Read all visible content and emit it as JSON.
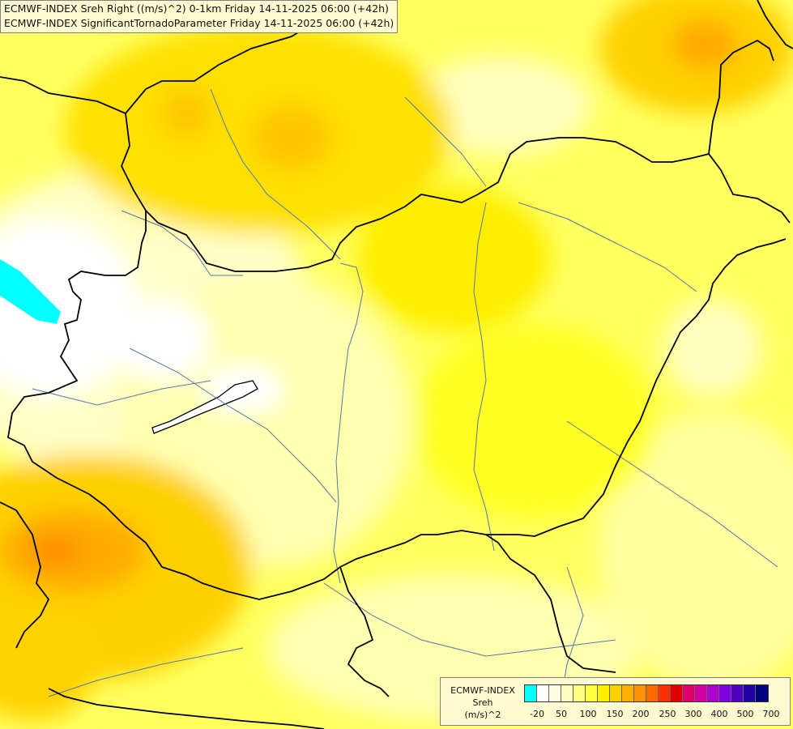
{
  "title": {
    "line1": "ECMWF-INDEX Sreh Right ((m/s)^2) 0-1km Friday 14-11-2025 06:00 (+42h)",
    "line2": "ECMWF-INDEX SignificantTornadoParameter Friday 14-11-2025 06:00 (+42h)"
  },
  "legend": {
    "line1": "ECMWF-INDEX",
    "line2": "Sreh",
    "line3": "(m/s)^2",
    "colors": [
      "#00ffff",
      "#ffffff",
      "#fffce0",
      "#ffffc0",
      "#ffff80",
      "#ffff40",
      "#ffee00",
      "#ffd000",
      "#ffb000",
      "#ff9000",
      "#ff6a00",
      "#ff3000",
      "#e00000",
      "#e0006a",
      "#d000a0",
      "#b000d0",
      "#8000e0",
      "#5000c0",
      "#2000a0",
      "#000080"
    ],
    "ticks": [
      "-20",
      "50",
      "100",
      "150",
      "200",
      "250",
      "300",
      "400",
      "500",
      "700"
    ]
  },
  "colors": {
    "border": "#000000",
    "river": "#5577aa",
    "lake": "#ffffff",
    "sea": "#00ffff"
  }
}
